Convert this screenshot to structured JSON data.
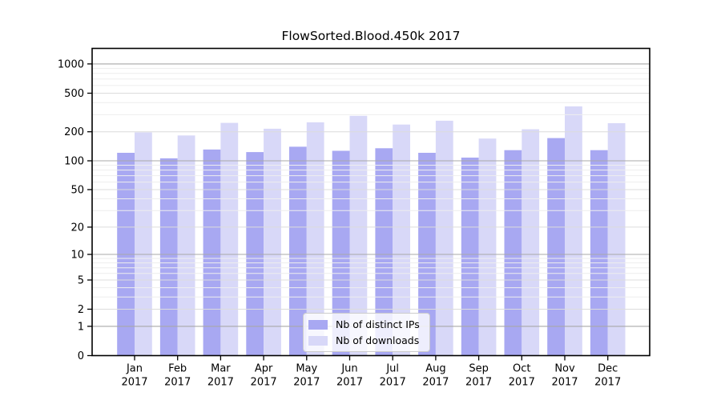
{
  "title": "FlowSorted.Blood.450k 2017",
  "chart_data": {
    "type": "bar",
    "title": "FlowSorted.Blood.450k 2017",
    "scale": "log10(value+1), zero pinned at baseline",
    "categories": [
      "Jan",
      "Feb",
      "Mar",
      "Apr",
      "May",
      "Jun",
      "Jul",
      "Aug",
      "Sep",
      "Oct",
      "Nov",
      "Dec"
    ],
    "category_year": "2017",
    "series": [
      {
        "name": "Nb of distinct IPs",
        "color": "#a8a8f2",
        "values": [
          121,
          106,
          131,
          123,
          140,
          127,
          135,
          121,
          108,
          129,
          172,
          129
        ]
      },
      {
        "name": "Nb of downloads",
        "color": "#d8d8f8",
        "values": [
          197,
          183,
          247,
          215,
          250,
          292,
          237,
          260,
          170,
          212,
          365,
          245
        ]
      }
    ],
    "y_ticks": [
      0,
      1,
      2,
      5,
      10,
      20,
      50,
      100,
      200,
      500,
      1000
    ],
    "ylim": [
      0,
      1400
    ],
    "xlabel": "",
    "ylabel": "",
    "grid": "horizontal major + log minor, drawn over bars",
    "legend_position": "inside bottom-center",
    "colors": {
      "frame": "#000000",
      "grid_decade": "#a8a8a8",
      "grid_labeled": "#dcdcdc",
      "grid_minor": "#eeeeee",
      "tick_text": "#000000"
    }
  }
}
